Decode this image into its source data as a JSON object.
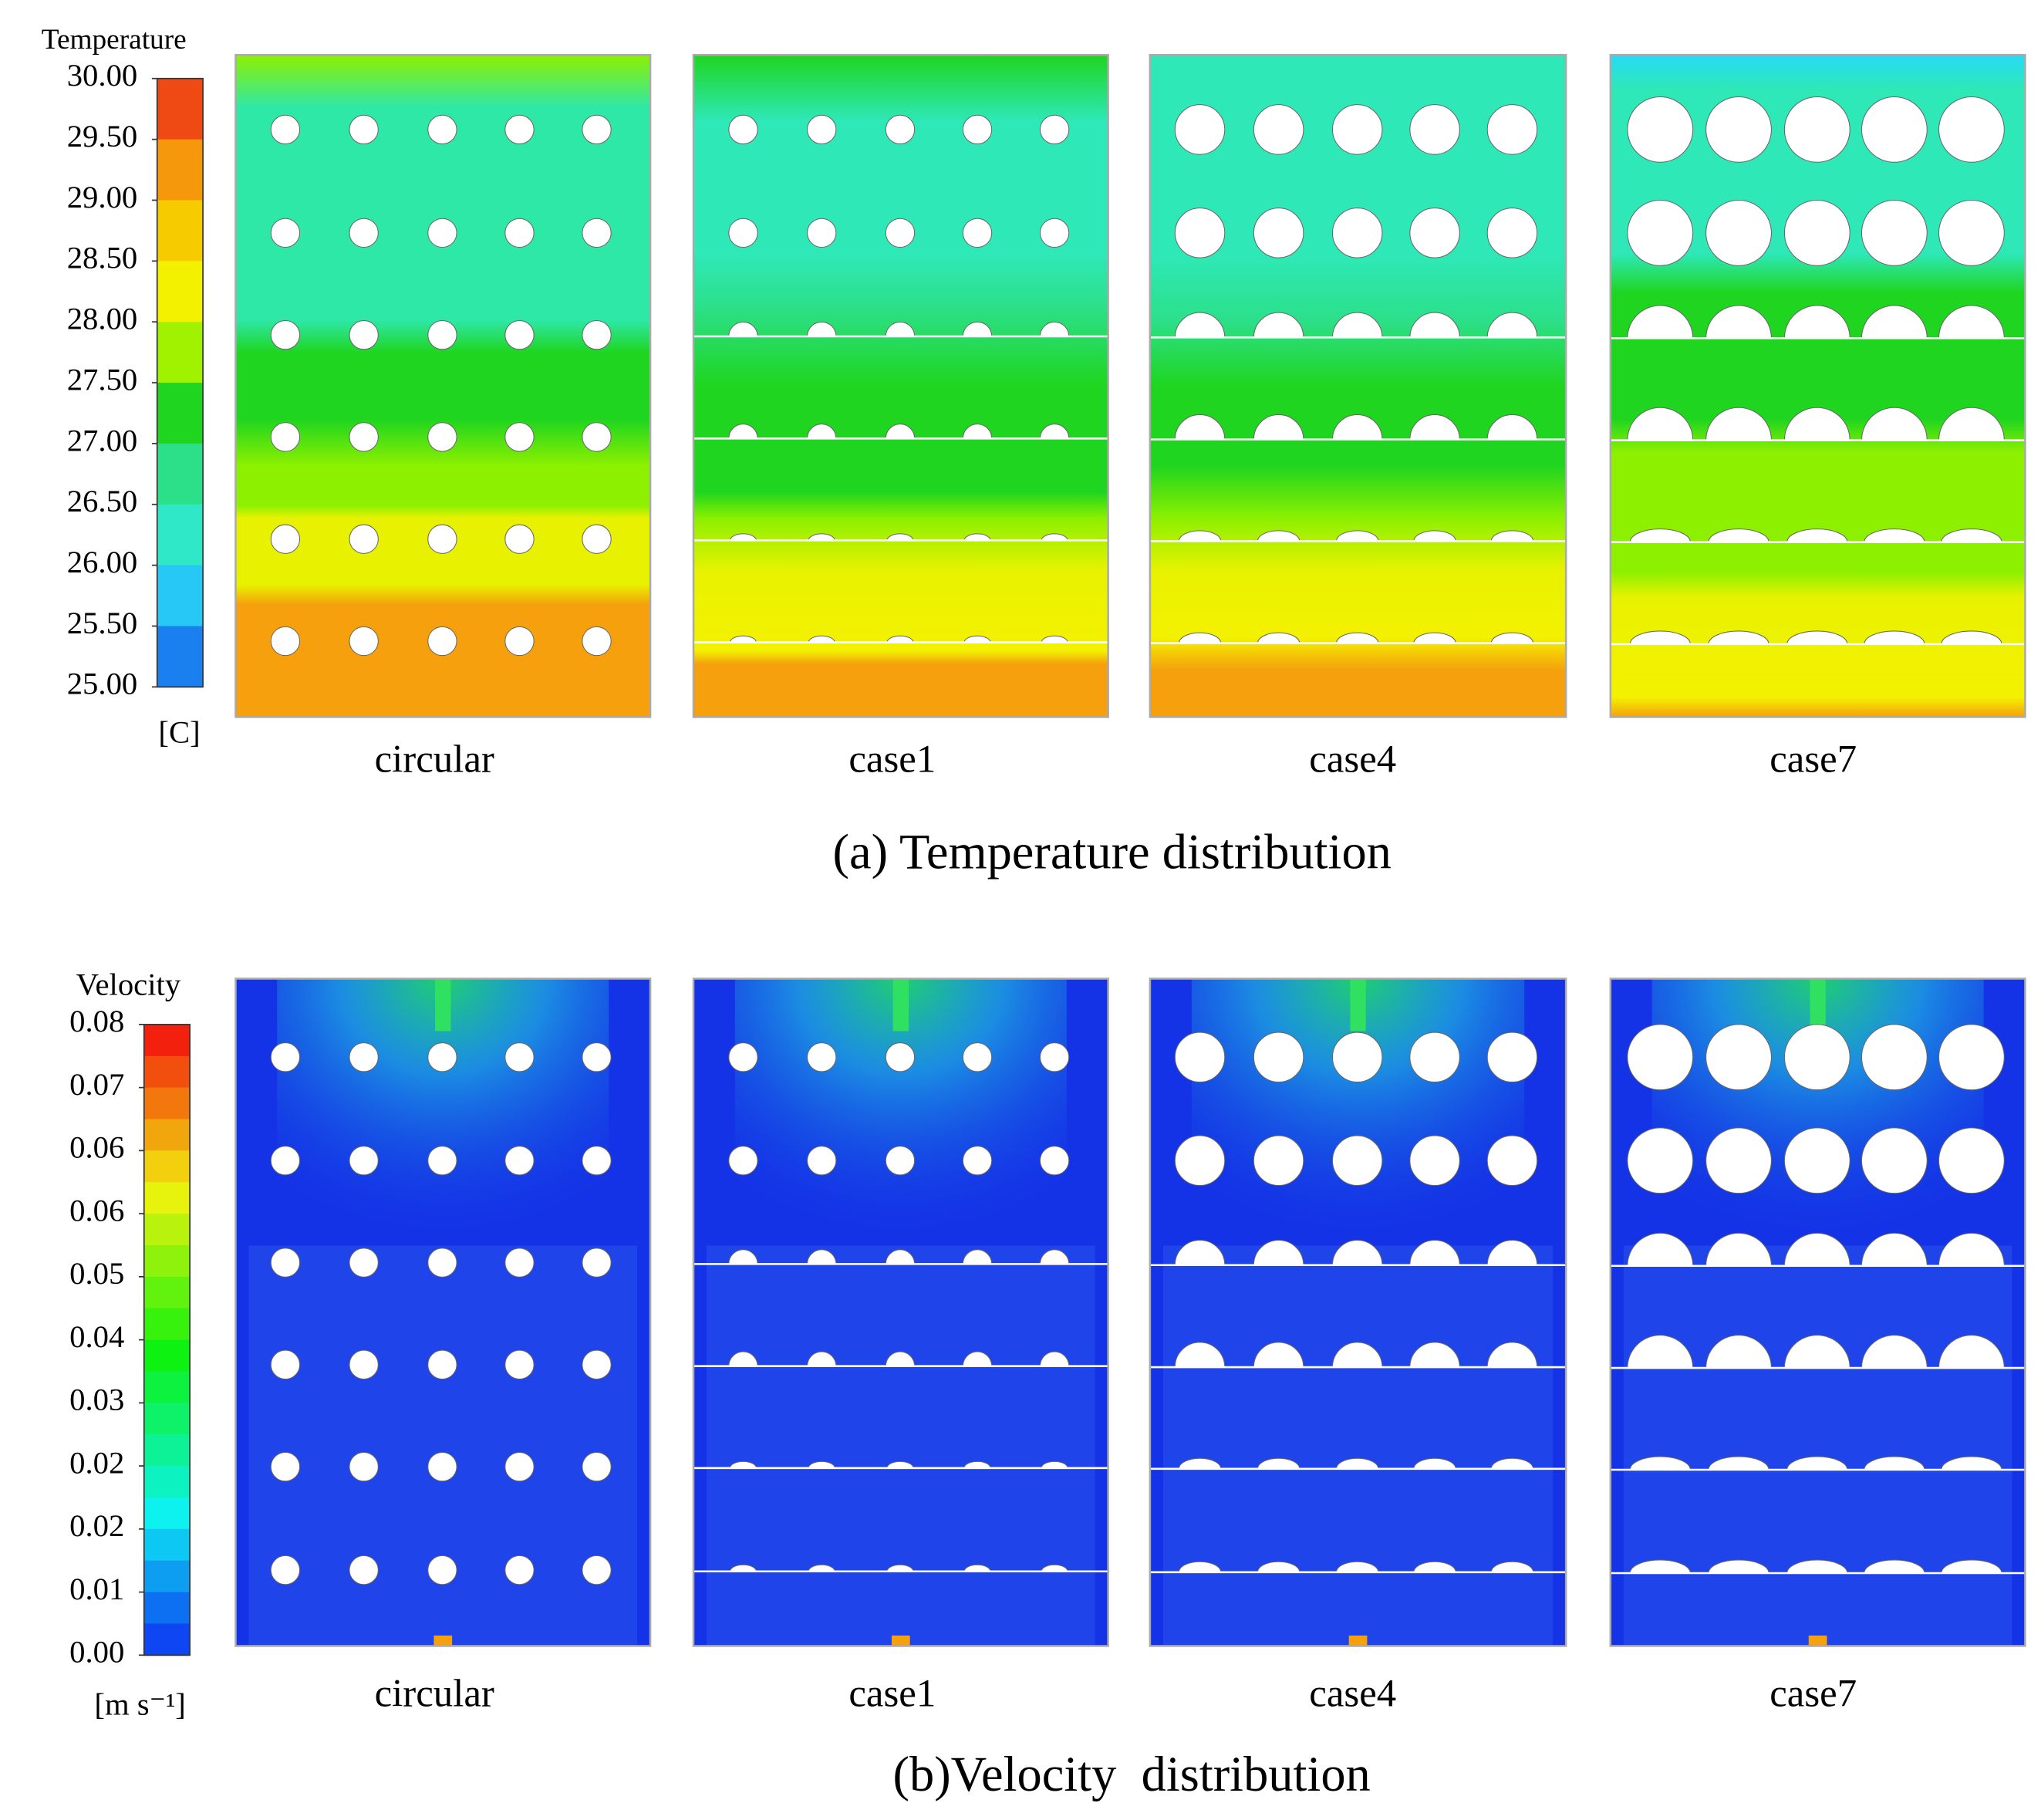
{
  "panels": [
    {
      "legend": {
        "title": "Temperature",
        "unit": "[C]",
        "ticks": [
          "30.00",
          "29.50",
          "29.00",
          "28.50",
          "28.00",
          "27.50",
          "27.00",
          "26.50",
          "26.00",
          "25.50",
          "25.00"
        ]
      },
      "cases": [
        "circular",
        "case1",
        "case4",
        "case7"
      ],
      "caption": "(a) Temperature distribution"
    },
    {
      "legend": {
        "title": "Velocity",
        "unit": "[m s⁻¹]",
        "ticks": [
          "0.08",
          "0.07",
          "0.06",
          "0.06",
          "0.05",
          "0.04",
          "0.03",
          "0.02",
          "0.02",
          "0.01",
          "0.00"
        ]
      },
      "cases": [
        "circular",
        "case1",
        "case4",
        "case7"
      ],
      "caption": "(b)Velocity  distribution"
    }
  ]
}
